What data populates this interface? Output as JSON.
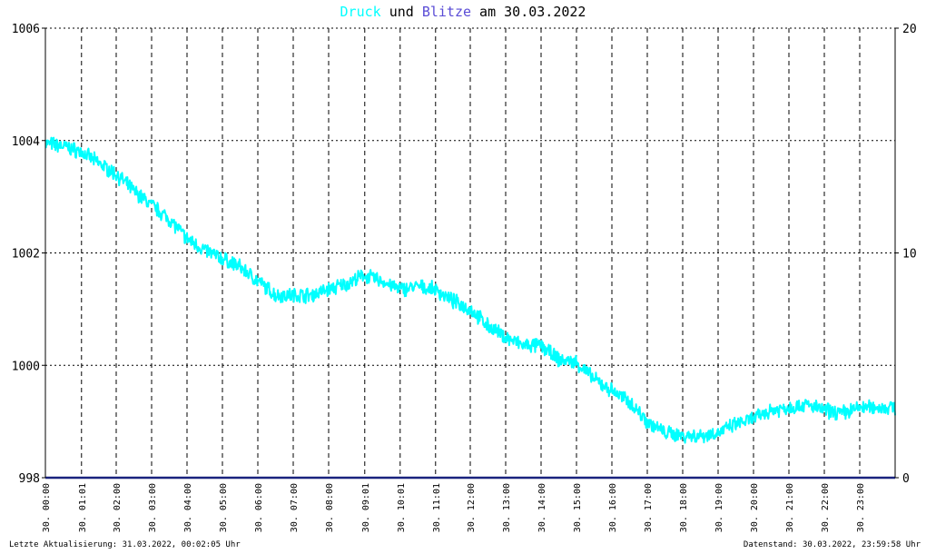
{
  "title": {
    "part1": "Druck",
    "part2": " und ",
    "part3": "Blitze",
    "part4": " am 30.03.2022"
  },
  "colors": {
    "druck": "#00ffff",
    "blitze": "#5a4cd6",
    "baseline": "#1a237e",
    "grid": "#000000",
    "text": "#000000"
  },
  "footer": {
    "left": "Letzte Aktualisierung: 31.03.2022, 00:02:05 Uhr",
    "right": "Datenstand: 30.03.2022, 23:59:58 Uhr"
  },
  "chart_data": {
    "type": "line",
    "title": "Druck und Blitze am 30.03.2022",
    "x_range": [
      "30.03.2022 00:00",
      "31.03.2022 00:00"
    ],
    "ylim_left": [
      998,
      1006
    ],
    "ylim_right": [
      0,
      20
    ],
    "yticks_left": [
      "1006",
      "1004",
      "1002",
      "1000",
      "998"
    ],
    "yticks_left_values": [
      1006,
      1004,
      1002,
      1000,
      998
    ],
    "yticks_right": [
      "20",
      "10",
      "0"
    ],
    "yticks_right_values": [
      20,
      10,
      0
    ],
    "x_tick_labels": [
      "30. 00:00",
      "30. 01:01",
      "30. 02:00",
      "30. 03:00",
      "30. 04:00",
      "30. 05:00",
      "30. 06:00",
      "30. 07:00",
      "30. 08:00",
      "30. 09:01",
      "30. 10:01",
      "30. 11:01",
      "30. 12:00",
      "30. 13:00",
      "30. 14:00",
      "30. 15:00",
      "30. 16:00",
      "30. 17:00",
      "30. 18:00",
      "30. 19:00",
      "30. 20:00",
      "30. 21:00",
      "30. 22:00",
      "30. 23:00"
    ],
    "x_tick_hours": [
      0,
      1.02,
      2,
      3,
      4,
      5,
      6,
      7,
      8,
      9.02,
      10.02,
      11.02,
      12,
      13,
      14,
      15,
      16,
      17,
      18,
      19,
      20,
      21,
      22,
      23
    ],
    "grid": true,
    "series": [
      {
        "name": "Druck",
        "axis": "left",
        "x_hours": [
          0,
          0.5,
          1,
          1.5,
          2,
          2.5,
          3,
          3.5,
          4,
          4.5,
          5,
          5.5,
          6,
          6.5,
          7,
          7.5,
          8,
          8.5,
          9,
          9.5,
          10,
          10.5,
          11,
          11.5,
          12,
          12.5,
          13,
          13.5,
          14,
          14.5,
          15,
          15.5,
          16,
          16.5,
          17,
          17.5,
          18,
          18.5,
          19,
          19.5,
          20,
          20.5,
          21,
          21.5,
          22,
          22.5,
          23,
          23.5,
          24
        ],
        "values": [
          1003.95,
          1003.9,
          1003.8,
          1003.6,
          1003.4,
          1003.1,
          1002.85,
          1002.6,
          1002.25,
          1002.05,
          1001.9,
          1001.75,
          1001.5,
          1001.25,
          1001.25,
          1001.25,
          1001.35,
          1001.45,
          1001.6,
          1001.5,
          1001.35,
          1001.4,
          1001.35,
          1001.15,
          1001.0,
          1000.7,
          1000.5,
          1000.35,
          1000.35,
          1000.1,
          1000.05,
          999.75,
          999.55,
          999.35,
          999.0,
          998.8,
          998.75,
          998.75,
          998.8,
          998.95,
          999.05,
          999.2,
          999.25,
          999.3,
          999.2,
          999.15,
          999.25,
          999.25,
          999.25
        ]
      },
      {
        "name": "Blitze",
        "axis": "right",
        "x_hours": [
          0,
          24
        ],
        "values": [
          0,
          0
        ]
      }
    ]
  }
}
